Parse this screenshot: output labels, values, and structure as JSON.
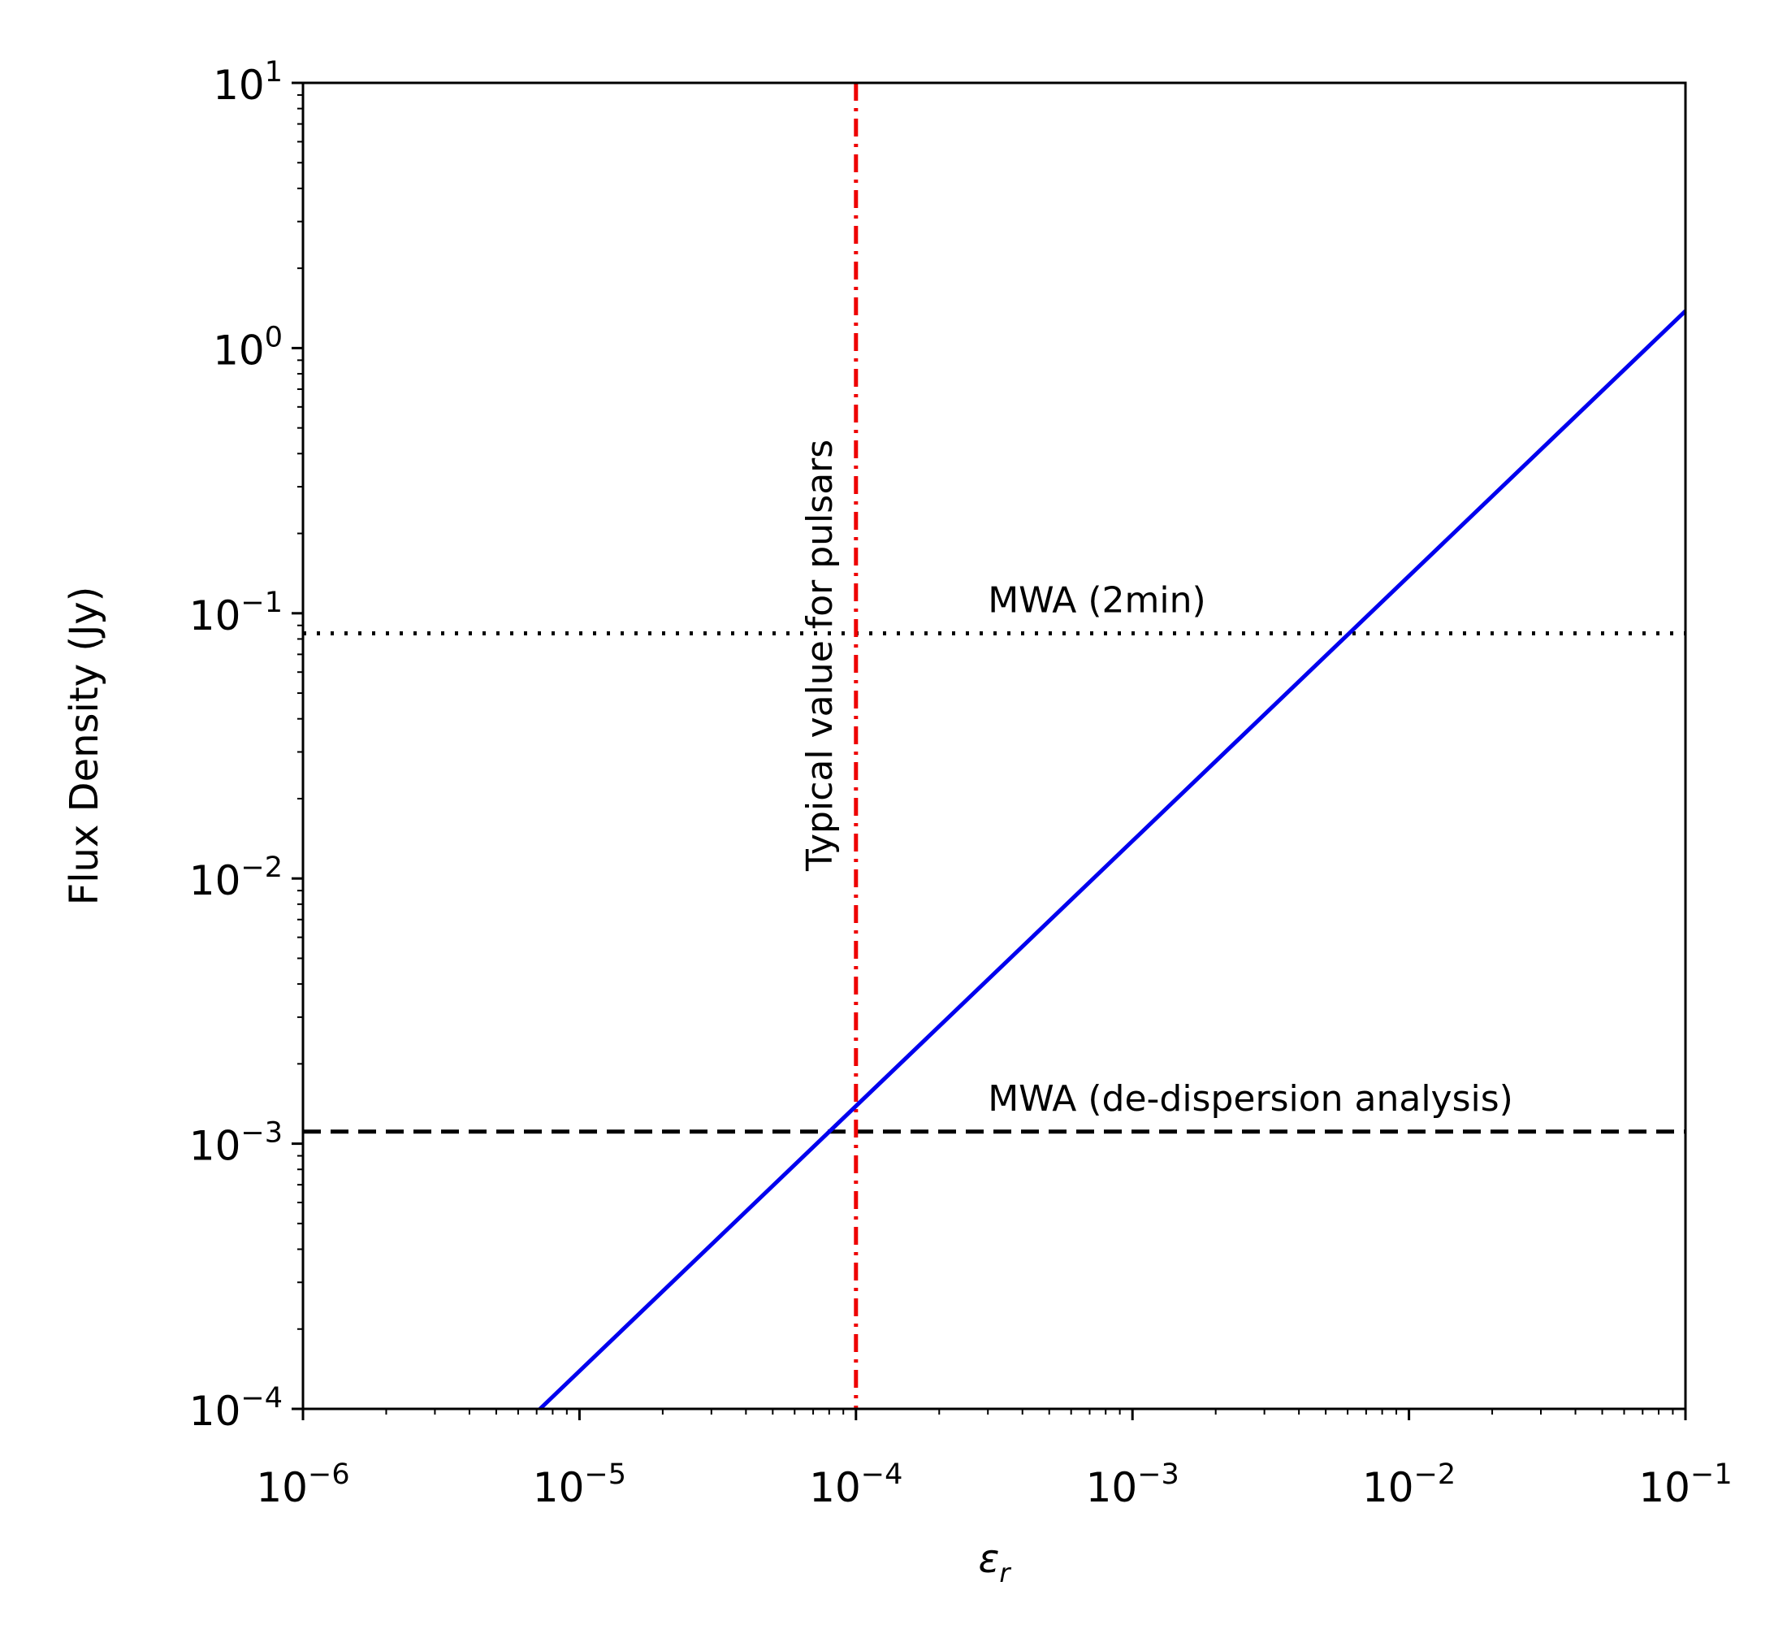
{
  "chart_data": {
    "type": "line",
    "xlabel": "ε",
    "xlabel_sub": "r",
    "ylabel": "Flux Density (Jy)",
    "xscale": "log",
    "yscale": "log",
    "xlim": [
      1e-06,
      0.1
    ],
    "ylim": [
      0.0001,
      10
    ],
    "x_ticks": [
      {
        "base": "10",
        "exp": "−6",
        "value": 1e-06
      },
      {
        "base": "10",
        "exp": "−5",
        "value": 1e-05
      },
      {
        "base": "10",
        "exp": "−4",
        "value": 0.0001
      },
      {
        "base": "10",
        "exp": "−3",
        "value": 0.001
      },
      {
        "base": "10",
        "exp": "−2",
        "value": 0.01
      },
      {
        "base": "10",
        "exp": "−1",
        "value": 0.1
      }
    ],
    "y_ticks": [
      {
        "base": "10",
        "exp": "−4",
        "value": 0.0001
      },
      {
        "base": "10",
        "exp": "−3",
        "value": 0.001
      },
      {
        "base": "10",
        "exp": "−2",
        "value": 0.01
      },
      {
        "base": "10",
        "exp": "−1",
        "value": 0.1
      },
      {
        "base": "10",
        "exp": "0",
        "value": 1
      },
      {
        "base": "10",
        "exp": "1",
        "value": 10
      }
    ],
    "grid": false,
    "series": [
      {
        "color": "#0000ee",
        "style": "solid",
        "x": [
          7.2e-06,
          0.1
        ],
        "y": [
          0.0001,
          1.38
        ]
      }
    ],
    "hlines": [
      {
        "label": "MWA (2min)",
        "y": 0.084,
        "color": "#000000",
        "style": "dotted",
        "label_x": 0.0003
      },
      {
        "label": "MWA (de-dispersion analysis)",
        "y": 0.00111,
        "color": "#000000",
        "style": "dashed",
        "label_x": 0.0003
      }
    ],
    "vlines": [
      {
        "label": "Typical value for pulsars",
        "x": 0.0001,
        "color": "#ee0000",
        "style": "dashdot"
      }
    ]
  }
}
